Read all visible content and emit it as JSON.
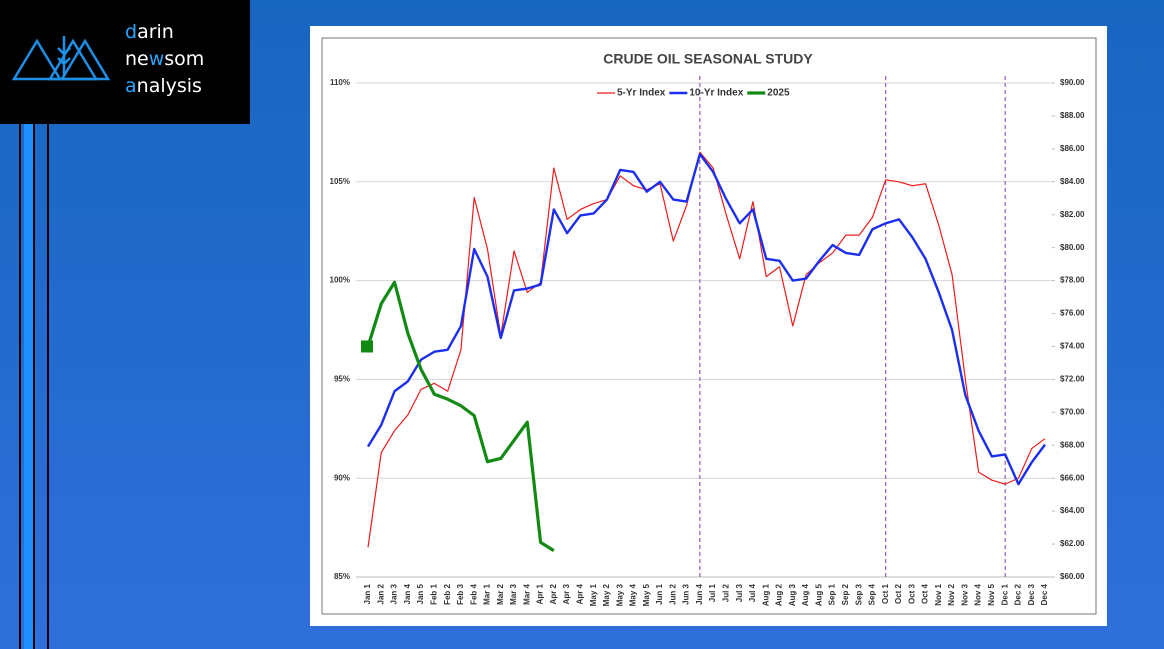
{
  "logo": {
    "lines": [
      [
        "d",
        "arin"
      ],
      [
        "ne",
        "w",
        "som"
      ],
      [
        "a",
        "nalysis"
      ]
    ]
  },
  "chart_data": {
    "type": "line",
    "title": "CRUDE OIL SEASONAL STUDY",
    "categories": [
      "Jan 1",
      "Jan 2",
      "Jan 3",
      "Jan 4",
      "Jan 5",
      "Feb 1",
      "Feb 2",
      "Feb 3",
      "Feb 4",
      "Mar 1",
      "Mar 2",
      "Mar 3",
      "Mar 4",
      "Apr 1",
      "Apr 2",
      "Apr 3",
      "Apr 4",
      "May 1",
      "May 2",
      "May 3",
      "May 4",
      "May 5",
      "Jun 1",
      "Jun 2",
      "Jun 3",
      "Jun 4",
      "Jul 1",
      "Jul 2",
      "Jul 3",
      "Jul 4",
      "Aug 1",
      "Aug 2",
      "Aug 3",
      "Aug 4",
      "Aug 5",
      "Sep 1",
      "Sep 2",
      "Sep 3",
      "Sep 4",
      "Oct 1",
      "Oct 2",
      "Oct 3",
      "Oct 4",
      "Nov 1",
      "Nov 2",
      "Nov 3",
      "Nov 4",
      "Nov 5",
      "Dec 1",
      "Dec 2",
      "Dec 3",
      "Dec 4"
    ],
    "series": [
      {
        "name": "5-Yr Index",
        "color": "#ee1c1c",
        "values": [
          86.5,
          91.3,
          92.4,
          93.2,
          94.5,
          94.8,
          94.4,
          96.5,
          104.2,
          101.6,
          97.2,
          101.5,
          99.4,
          99.9,
          105.7,
          103.1,
          103.6,
          103.9,
          104.1,
          105.3,
          104.8,
          104.6,
          104.9,
          102.0,
          103.8,
          106.5,
          105.7,
          103.3,
          101.1,
          104.0,
          100.2,
          100.7,
          97.7,
          100.3,
          100.9,
          101.4,
          102.3,
          102.3,
          103.2,
          105.1,
          105.0,
          104.8,
          104.9,
          102.8,
          100.3,
          95.0,
          90.3,
          89.9,
          89.7,
          90.0,
          91.5,
          92.0
        ]
      },
      {
        "name": "10-Yr Index",
        "color": "#1c2ff0",
        "values": [
          91.6,
          92.7,
          94.4,
          94.9,
          96.0,
          96.4,
          96.5,
          97.7,
          101.6,
          100.2,
          97.1,
          99.5,
          99.6,
          99.8,
          103.6,
          102.4,
          103.3,
          103.4,
          104.1,
          105.6,
          105.5,
          104.5,
          105.0,
          104.1,
          104.0,
          106.4,
          105.5,
          104.1,
          102.9,
          103.6,
          101.1,
          101.0,
          100.0,
          100.1,
          101.0,
          101.8,
          101.4,
          101.3,
          102.6,
          102.9,
          103.1,
          102.2,
          101.1,
          99.4,
          97.5,
          94.2,
          92.4,
          91.1,
          91.2,
          89.7,
          90.8,
          91.7
        ]
      },
      {
        "name": "2025",
        "color": "#138a13",
        "axis": "y2",
        "start_marker": "square",
        "values": [
          74.0,
          76.6,
          77.9,
          74.8,
          72.6,
          71.1,
          70.8,
          70.4,
          69.8,
          67.0,
          67.2,
          68.3,
          69.4,
          62.1,
          61.6,
          null,
          null,
          null,
          null,
          null,
          null,
          null,
          null,
          null,
          null,
          null,
          null,
          null,
          null,
          null,
          null,
          null,
          null,
          null,
          null,
          null,
          null,
          null,
          null,
          null,
          null,
          null,
          null,
          null,
          null,
          null,
          null,
          null,
          null,
          null,
          null,
          null
        ]
      }
    ],
    "ylim": [
      85,
      110
    ],
    "yticks": [
      {
        "value": 85,
        "label": "85%"
      },
      {
        "value": 90,
        "label": "90%"
      },
      {
        "value": 95,
        "label": "95%"
      },
      {
        "value": 100,
        "label": "100%"
      },
      {
        "value": 105,
        "label": "105%"
      },
      {
        "value": 110,
        "label": "110%"
      }
    ],
    "y2lim": [
      60,
      90
    ],
    "y2ticks": [
      {
        "value": 60,
        "label": "$60.00"
      },
      {
        "value": 62,
        "label": "$62.00"
      },
      {
        "value": 64,
        "label": "$64.00"
      },
      {
        "value": 66,
        "label": "$66.00"
      },
      {
        "value": 68,
        "label": "$68.00"
      },
      {
        "value": 70,
        "label": "$70.00"
      },
      {
        "value": 72,
        "label": "$72.00"
      },
      {
        "value": 74,
        "label": "$74.00"
      },
      {
        "value": 76,
        "label": "$76.00"
      },
      {
        "value": 78,
        "label": "$78.00"
      },
      {
        "value": 80,
        "label": "$80.00"
      },
      {
        "value": 82,
        "label": "$82.00"
      },
      {
        "value": 84,
        "label": "$84.00"
      },
      {
        "value": 86,
        "label": "$86.00"
      },
      {
        "value": 88,
        "label": "$88.00"
      },
      {
        "value": 90,
        "label": "$90.00"
      }
    ],
    "grid": true,
    "legend": "top",
    "vlines": [
      "Jun 4",
      "Oct 1",
      "Dec 1"
    ],
    "vline_color": "#7a3fb0"
  }
}
